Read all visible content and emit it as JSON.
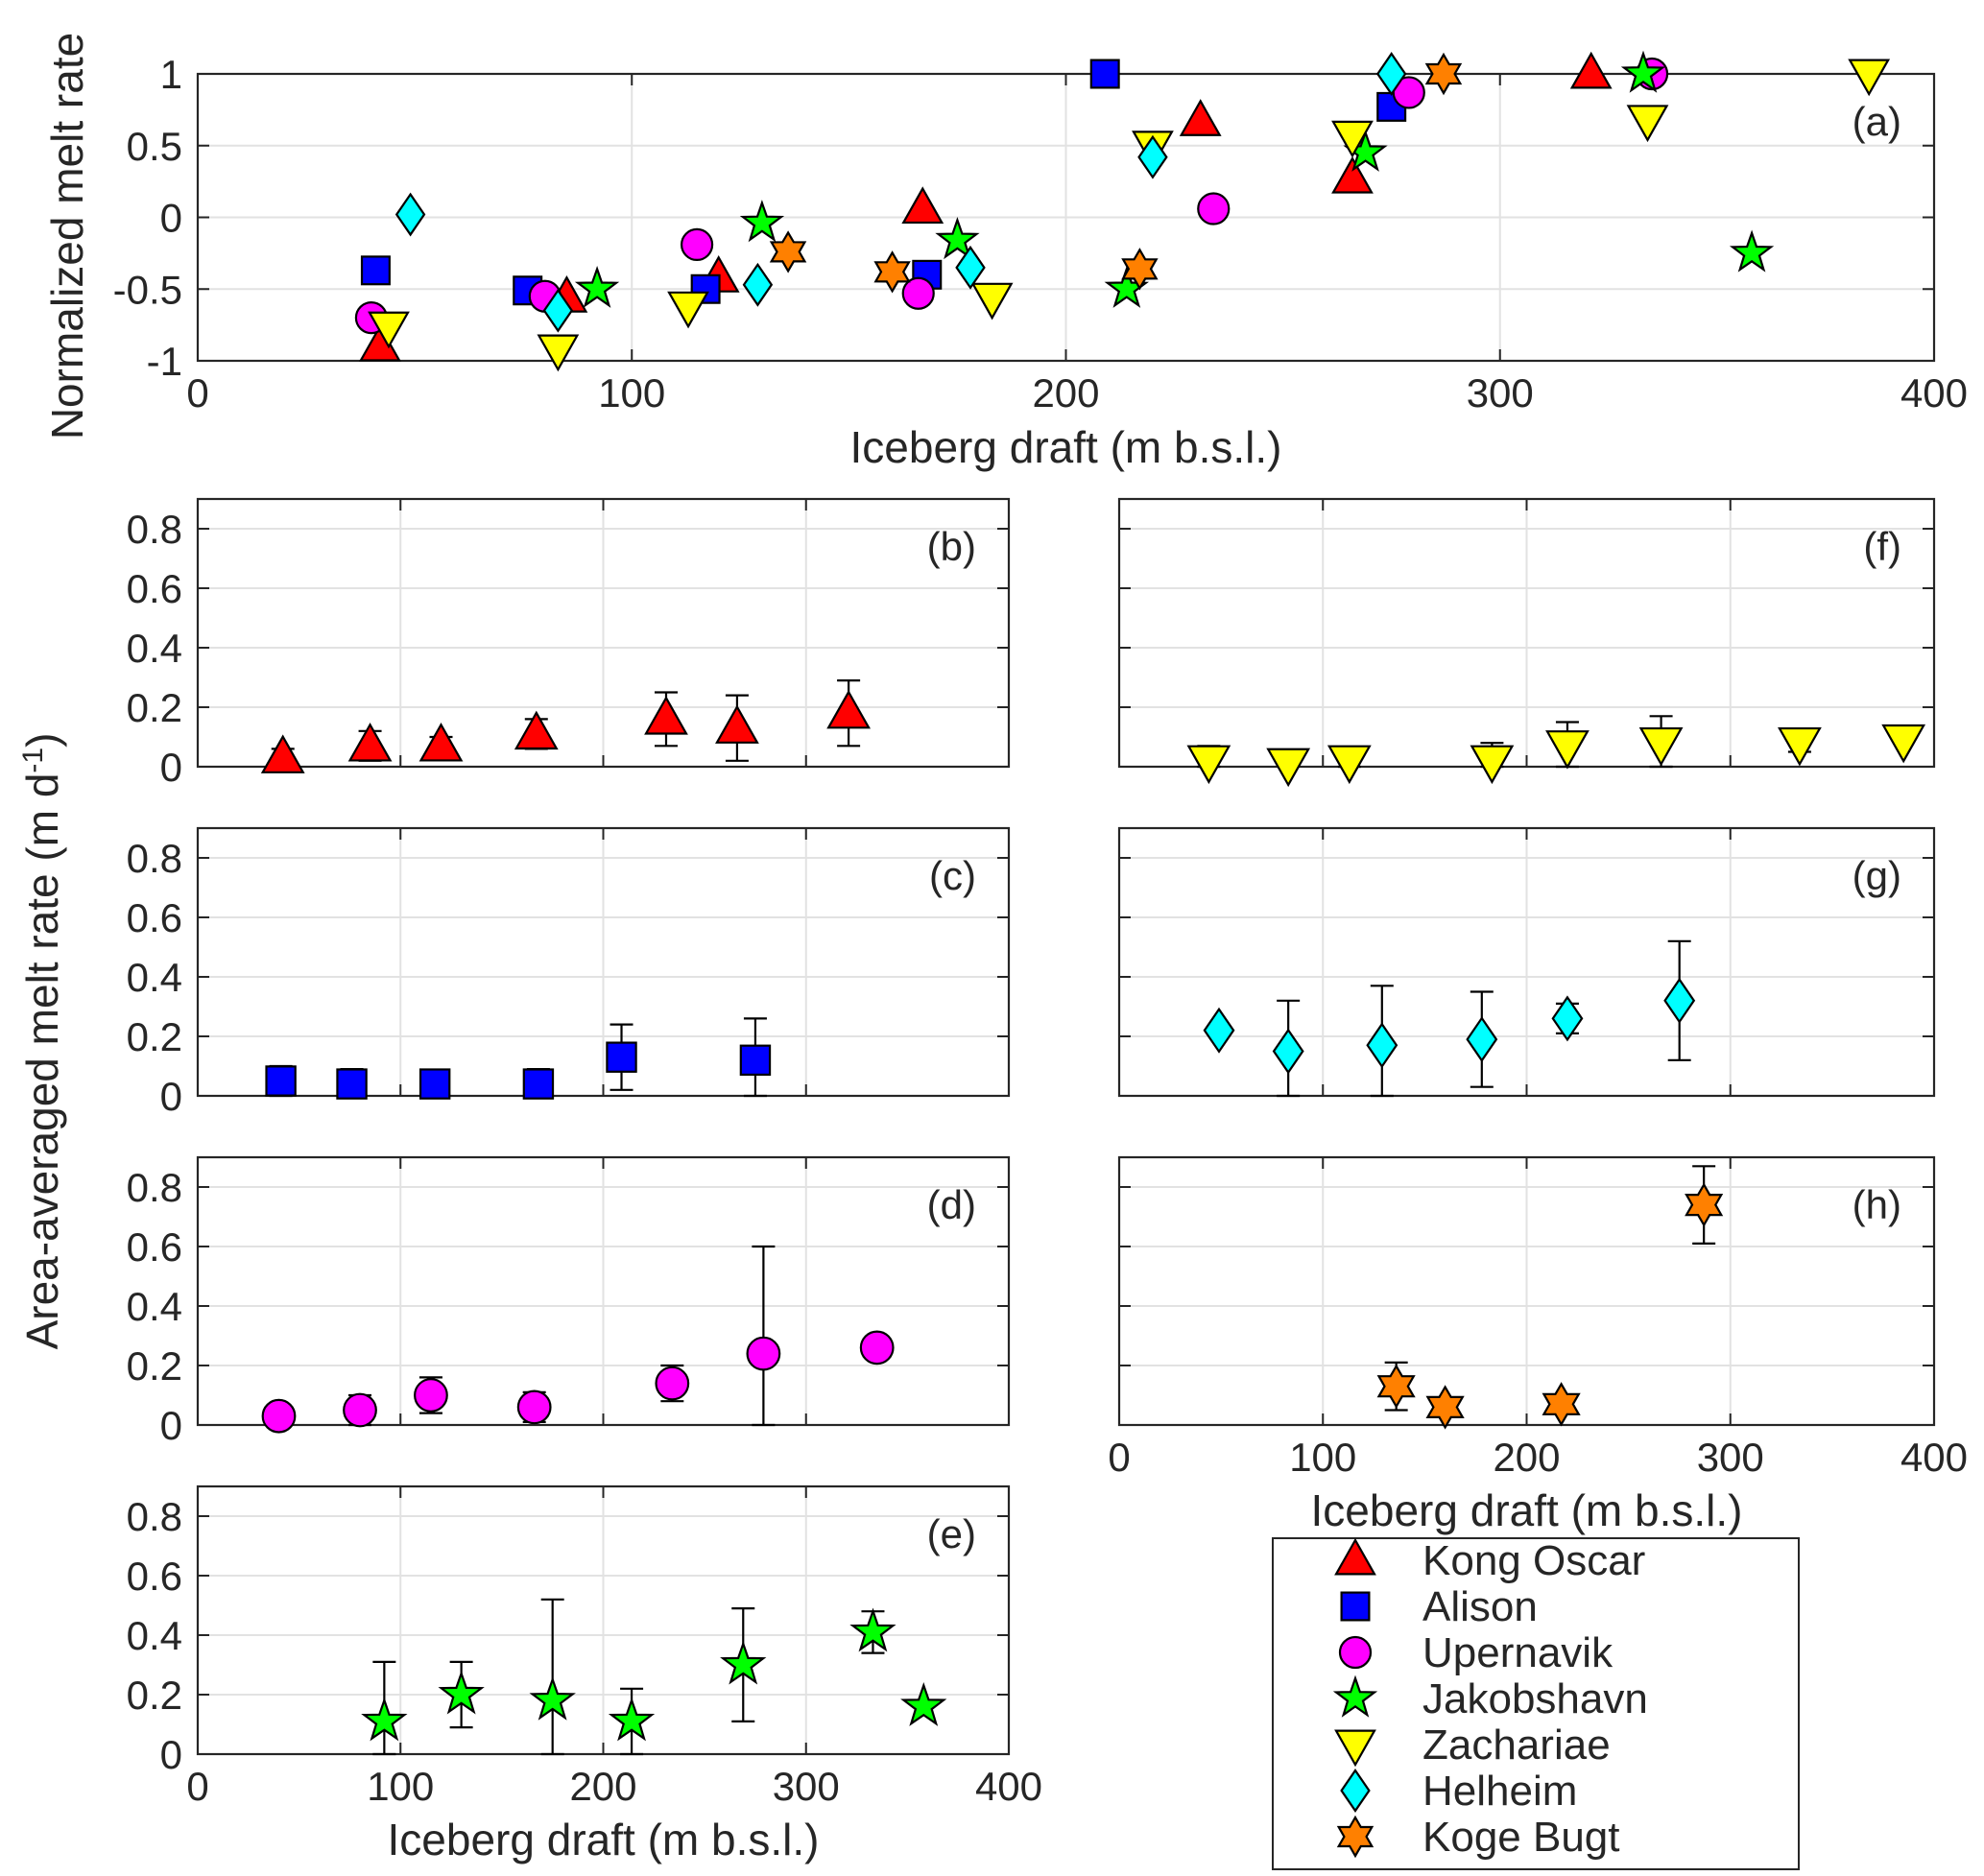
{
  "figure": {
    "ylabel_top": "Normalized melt rate",
    "ylabel_shared": "Area-averaged melt rate (m d",
    "ylabel_shared_sup": "-1",
    "ylabel_shared_end": ")",
    "xlabel": "Iceberg draft (m b.s.l.)"
  },
  "legend": {
    "entries": [
      {
        "name": "Kong Oscar",
        "marker": "triangle-up",
        "color": "#ff0000"
      },
      {
        "name": "Alison",
        "marker": "square",
        "color": "#0000ff"
      },
      {
        "name": "Upernavik",
        "marker": "circle",
        "color": "#ff00ff"
      },
      {
        "name": "Jakobshavn",
        "marker": "pentagram",
        "color": "#00ff00"
      },
      {
        "name": "Zachariae",
        "marker": "triangle-down",
        "color": "#ffff00"
      },
      {
        "name": "Helheim",
        "marker": "diamond",
        "color": "#00ffff"
      },
      {
        "name": "Koge Bugt",
        "marker": "hexagram",
        "color": "#ff8000"
      }
    ]
  },
  "chart_data": [
    {
      "panel": "(a)",
      "type": "scatter",
      "xlabel": "Iceberg draft (m b.s.l.)",
      "ylabel": "Normalized melt rate",
      "xlim": [
        0,
        400
      ],
      "ylim": [
        -1,
        1
      ],
      "xticks": [
        0,
        100,
        200,
        300,
        400
      ],
      "yticks": [
        -1,
        -0.5,
        0,
        0.5,
        1
      ],
      "ytick_labels": [
        "-1",
        "-0.5",
        "0",
        "0.5",
        "1"
      ],
      "grid": true,
      "series": [
        {
          "name": "Kong Oscar",
          "x": [
            42,
            85,
            120,
            167,
            231,
            266,
            321
          ],
          "y": [
            -0.9,
            -0.56,
            -0.42,
            0.06,
            0.67,
            0.27,
            1
          ]
        },
        {
          "name": "Alison",
          "x": [
            41,
            76,
            117,
            168,
            209,
            275
          ],
          "y": [
            -0.37,
            -0.51,
            -0.5,
            -0.4,
            1,
            0.77
          ]
        },
        {
          "name": "Upernavik",
          "x": [
            40,
            80,
            115,
            166,
            234,
            279,
            335
          ],
          "y": [
            -0.7,
            -0.55,
            -0.19,
            -0.53,
            0.06,
            0.87,
            1
          ]
        },
        {
          "name": "Jakobshavn",
          "x": [
            92,
            130,
            175,
            214,
            269,
            333,
            358
          ],
          "y": [
            -0.5,
            -0.04,
            -0.16,
            -0.5,
            0.45,
            1,
            -0.25
          ]
        },
        {
          "name": "Zachariae",
          "x": [
            44,
            83,
            113,
            183,
            220,
            266,
            334,
            385
          ],
          "y": [
            -0.76,
            -0.92,
            -0.62,
            -0.56,
            0.5,
            0.57,
            0.68,
            1
          ]
        },
        {
          "name": "Helheim",
          "x": [
            49,
            83,
            129,
            178,
            220,
            275
          ],
          "y": [
            0.02,
            -0.65,
            -0.47,
            -0.35,
            0.42,
            1
          ]
        },
        {
          "name": "Koge Bugt",
          "x": [
            136,
            160,
            217,
            287
          ],
          "y": [
            -0.24,
            -0.38,
            -0.36,
            1
          ]
        }
      ]
    },
    {
      "panel": "(b)",
      "type": "scatter",
      "site": "Kong Oscar",
      "xlim": [
        0,
        400
      ],
      "ylim": [
        0,
        0.9
      ],
      "yticks": [
        0,
        0.2,
        0.4,
        0.6,
        0.8
      ],
      "ytick_labels": [
        "0",
        "0.2",
        "0.4",
        "0.6",
        "0.8"
      ],
      "x": [
        42,
        85,
        120,
        167,
        231,
        266,
        321
      ],
      "y": [
        0.03,
        0.07,
        0.07,
        0.11,
        0.16,
        0.13,
        0.18
      ],
      "err": [
        0.03,
        0.05,
        0.03,
        0.05,
        0.09,
        0.11,
        0.11
      ]
    },
    {
      "panel": "(c)",
      "type": "scatter",
      "site": "Alison",
      "xlim": [
        0,
        400
      ],
      "ylim": [
        0,
        0.9
      ],
      "yticks": [
        0,
        0.2,
        0.4,
        0.6,
        0.8
      ],
      "ytick_labels": [
        "0",
        "0.2",
        "0.4",
        "0.6",
        "0.8"
      ],
      "x": [
        41,
        76,
        117,
        168,
        209,
        275
      ],
      "y": [
        0.05,
        0.04,
        0.04,
        0.04,
        0.13,
        0.12
      ],
      "err": [
        0.05,
        0.05,
        0.04,
        0.05,
        0.11,
        0.14
      ]
    },
    {
      "panel": "(d)",
      "type": "scatter",
      "site": "Upernavik",
      "xlim": [
        0,
        400
      ],
      "ylim": [
        0,
        0.9
      ],
      "yticks": [
        0,
        0.2,
        0.4,
        0.6,
        0.8
      ],
      "ytick_labels": [
        "0",
        "0.2",
        "0.4",
        "0.6",
        "0.8"
      ],
      "x": [
        40,
        80,
        115,
        166,
        234,
        279,
        335
      ],
      "y": [
        0.03,
        0.05,
        0.1,
        0.06,
        0.14,
        0.24,
        0.26
      ],
      "err": [
        0,
        0.05,
        0.06,
        0.05,
        0.06,
        0.36,
        0
      ]
    },
    {
      "panel": "(e)",
      "type": "scatter",
      "site": "Jakobshavn",
      "xlim": [
        0,
        400
      ],
      "ylim": [
        0,
        0.9
      ],
      "xticks": [
        0,
        100,
        200,
        300,
        400
      ],
      "yticks": [
        0,
        0.2,
        0.4,
        0.6,
        0.8
      ],
      "ytick_labels": [
        "0",
        "0.2",
        "0.4",
        "0.6",
        "0.8"
      ],
      "xlabel": "Iceberg draft (m b.s.l.)",
      "x": [
        92,
        130,
        175,
        214,
        269,
        333,
        358
      ],
      "y": [
        0.11,
        0.2,
        0.18,
        0.11,
        0.3,
        0.41,
        0.16
      ],
      "err": [
        0.2,
        0.11,
        0.34,
        0.11,
        0.19,
        0.07,
        0
      ]
    },
    {
      "panel": "(f)",
      "type": "scatter",
      "site": "Zachariae",
      "xlim": [
        0,
        400
      ],
      "ylim": [
        0,
        0.9
      ],
      "x": [
        44,
        83,
        113,
        183,
        220,
        266,
        334,
        385
      ],
      "y": [
        0.02,
        0.01,
        0.02,
        0.02,
        0.07,
        0.08,
        0.08,
        0.09
      ],
      "err": [
        0.05,
        0,
        0.04,
        0.06,
        0.08,
        0.09,
        0.03,
        0
      ]
    },
    {
      "panel": "(g)",
      "type": "scatter",
      "site": "Helheim",
      "xlim": [
        0,
        400
      ],
      "ylim": [
        0,
        0.9
      ],
      "x": [
        49,
        83,
        129,
        178,
        220,
        275
      ],
      "y": [
        0.22,
        0.15,
        0.17,
        0.19,
        0.26,
        0.32
      ],
      "err": [
        0,
        0.17,
        0.2,
        0.16,
        0.05,
        0.2
      ]
    },
    {
      "panel": "(h)",
      "type": "scatter",
      "site": "Koge Bugt",
      "xlim": [
        0,
        400
      ],
      "ylim": [
        0,
        0.9
      ],
      "xticks": [
        0,
        100,
        200,
        300,
        400
      ],
      "xlabel": "Iceberg draft (m b.s.l.)",
      "x": [
        136,
        160,
        217,
        287
      ],
      "y": [
        0.13,
        0.06,
        0.07,
        0.74
      ],
      "err": [
        0.08,
        0,
        0,
        0.13
      ]
    }
  ]
}
